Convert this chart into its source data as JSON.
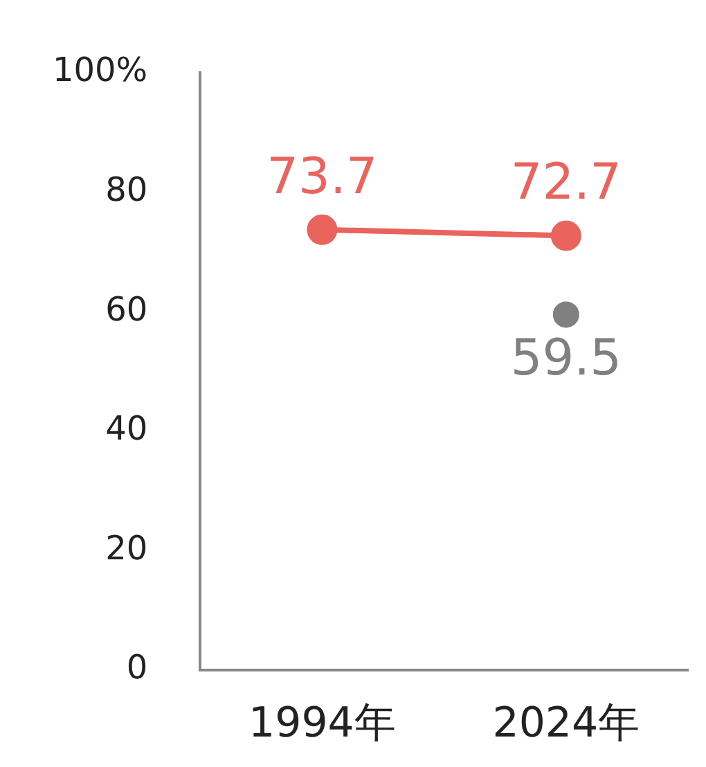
{
  "chart_data": {
    "type": "line",
    "categories": [
      "1994年",
      "2024年"
    ],
    "series": [
      {
        "color": "#e8645d",
        "values": [
          73.7,
          72.7
        ]
      },
      {
        "type": "scatter",
        "color": "#808080",
        "x": [
          "2024年"
        ],
        "values": [
          59.5
        ]
      }
    ],
    "ylim": [
      0,
      100
    ],
    "yticks": [
      0,
      20,
      40,
      60,
      {
        "value": 80,
        "label": "80"
      },
      {
        "value": 100,
        "label": "100%"
      }
    ],
    "grid": false,
    "legend": false,
    "marker": "circle",
    "line_style": "solid",
    "data_labels": true
  }
}
